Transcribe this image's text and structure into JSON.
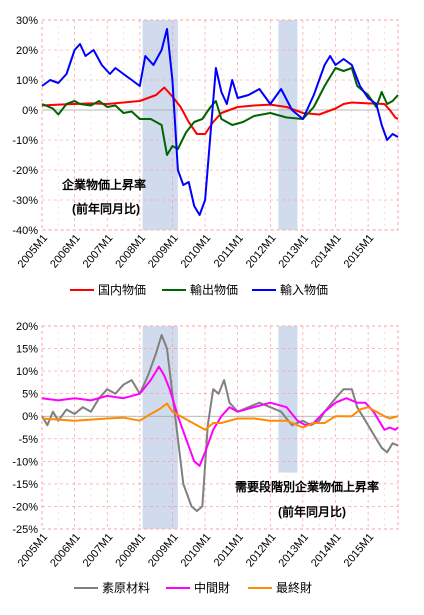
{
  "chart_data": [
    {
      "type": "line",
      "y_unit": "%",
      "ylim": [
        -40,
        30
      ],
      "yticks": [
        "30%",
        "20%",
        "10%",
        "0%",
        "-10%",
        "-20%",
        "-30%",
        "-40%"
      ],
      "x_tick_labels": [
        "2005M1",
        "2006M1",
        "2007M1",
        "2008M1",
        "2009M1",
        "2010M1",
        "2011M1",
        "2012M1",
        "2013M1",
        "2014M1",
        "2015M1"
      ],
      "x_range": [
        "2005M1",
        "2015M12"
      ],
      "grid": true,
      "legend_position": "bottom",
      "shaded_periods": [
        [
          "2008M2",
          "2009M3"
        ],
        [
          "2012M4",
          "2012M11"
        ]
      ],
      "annotation_line1": "企業物価上昇率",
      "annotation_line2": "(前年同月比)",
      "series": [
        {
          "name": "国内物価",
          "color": "#ff0000",
          "points": [
            [
              0,
              1.5
            ],
            [
              6,
              1.8
            ],
            [
              12,
              2.0
            ],
            [
              18,
              2.2
            ],
            [
              24,
              2.0
            ],
            [
              30,
              2.5
            ],
            [
              36,
              3.0
            ],
            [
              42,
              5.0
            ],
            [
              45,
              7.5
            ],
            [
              48,
              4.5
            ],
            [
              51,
              1.0
            ],
            [
              54,
              -4.0
            ],
            [
              57,
              -8.0
            ],
            [
              60,
              -8.0
            ],
            [
              63,
              -4.0
            ],
            [
              66,
              -1.0
            ],
            [
              69,
              0.0
            ],
            [
              72,
              1.0
            ],
            [
              78,
              1.5
            ],
            [
              84,
              1.8
            ],
            [
              90,
              1.0
            ],
            [
              96,
              -1.0
            ],
            [
              102,
              -1.5
            ],
            [
              108,
              0.5
            ],
            [
              111,
              2.0
            ],
            [
              114,
              2.5
            ],
            [
              120,
              2.2
            ],
            [
              126,
              2.0
            ],
            [
              128,
              0.0
            ],
            [
              130,
              -2.5
            ],
            [
              131,
              -3.0
            ]
          ]
        },
        {
          "name": "輸出物価",
          "color": "#006400",
          "points": [
            [
              0,
              2.0
            ],
            [
              4,
              0.5
            ],
            [
              6,
              -1.5
            ],
            [
              9,
              2.0
            ],
            [
              12,
              3.0
            ],
            [
              14,
              2.0
            ],
            [
              18,
              1.5
            ],
            [
              21,
              3.0
            ],
            [
              24,
              1.0
            ],
            [
              27,
              1.5
            ],
            [
              30,
              -1.0
            ],
            [
              33,
              -0.5
            ],
            [
              36,
              -3.0
            ],
            [
              40,
              -3.0
            ],
            [
              44,
              -5.0
            ],
            [
              46,
              -15.0
            ],
            [
              48,
              -12.0
            ],
            [
              50,
              -13.0
            ],
            [
              53,
              -7.5
            ],
            [
              56,
              -4.0
            ],
            [
              59,
              -3.0
            ],
            [
              62,
              1.0
            ],
            [
              64,
              3.0
            ],
            [
              66,
              -3.0
            ],
            [
              70,
              -5.0
            ],
            [
              74,
              -4.0
            ],
            [
              78,
              -2.0
            ],
            [
              84,
              -1.0
            ],
            [
              90,
              -2.5
            ],
            [
              96,
              -3.0
            ],
            [
              100,
              1.0
            ],
            [
              104,
              8.0
            ],
            [
              108,
              14.0
            ],
            [
              111,
              13.0
            ],
            [
              114,
              14.0
            ],
            [
              116,
              8.0
            ],
            [
              120,
              5.0
            ],
            [
              123,
              1.0
            ],
            [
              125,
              6.0
            ],
            [
              127,
              2.0
            ],
            [
              129,
              3.0
            ],
            [
              131,
              5.0
            ]
          ]
        },
        {
          "name": "輸入物価",
          "color": "#0000ff",
          "points": [
            [
              0,
              8.0
            ],
            [
              3,
              10.0
            ],
            [
              6,
              9.0
            ],
            [
              9,
              12.0
            ],
            [
              12,
              20.0
            ],
            [
              14,
              22.0
            ],
            [
              16,
              18.0
            ],
            [
              19,
              20.0
            ],
            [
              22,
              15.0
            ],
            [
              25,
              12.0
            ],
            [
              27,
              14.0
            ],
            [
              30,
              12.0
            ],
            [
              33,
              10.0
            ],
            [
              36,
              8.0
            ],
            [
              38,
              18.0
            ],
            [
              41,
              15.0
            ],
            [
              44,
              20.0
            ],
            [
              46,
              27.0
            ],
            [
              48,
              10.0
            ],
            [
              50,
              -20.0
            ],
            [
              52,
              -25.0
            ],
            [
              54,
              -24.0
            ],
            [
              56,
              -32.0
            ],
            [
              58,
              -35.0
            ],
            [
              60,
              -30.0
            ],
            [
              62,
              -8.0
            ],
            [
              64,
              14.0
            ],
            [
              66,
              6.0
            ],
            [
              68,
              2.0
            ],
            [
              70,
              10.0
            ],
            [
              72,
              4.0
            ],
            [
              76,
              5.0
            ],
            [
              80,
              7.0
            ],
            [
              84,
              2.0
            ],
            [
              88,
              7.0
            ],
            [
              92,
              0.0
            ],
            [
              96,
              -3.0
            ],
            [
              100,
              5.0
            ],
            [
              104,
              15.0
            ],
            [
              106,
              18.0
            ],
            [
              108,
              15.0
            ],
            [
              111,
              17.0
            ],
            [
              114,
              15.0
            ],
            [
              117,
              8.0
            ],
            [
              120,
              4.0
            ],
            [
              123,
              2.0
            ],
            [
              125,
              -5.0
            ],
            [
              127,
              -10.0
            ],
            [
              129,
              -8.0
            ],
            [
              131,
              -9.0
            ]
          ]
        }
      ]
    },
    {
      "type": "line",
      "y_unit": "%",
      "ylim": [
        -25,
        20
      ],
      "yticks": [
        "20%",
        "15%",
        "10%",
        "5%",
        "0%",
        "-5%",
        "-10%",
        "-15%",
        "-20%",
        "-25%"
      ],
      "x_tick_labels": [
        "2005M1",
        "2006M1",
        "2007M1",
        "2008M1",
        "2009M1",
        "2010M1",
        "2011M1",
        "2012M1",
        "2013M1",
        "2014M1",
        "2015M1"
      ],
      "x_range": [
        "2005M1",
        "2015M12"
      ],
      "grid": true,
      "legend_position": "bottom",
      "shaded_periods": [
        [
          "2008M2",
          "2009M3"
        ],
        [
          "2012M4",
          "2012M11"
        ]
      ],
      "annotation_line1": "需要段階別企業物価上昇率",
      "annotation_line2": "(前年同月比)",
      "series": [
        {
          "name": "素原材料",
          "color": "#808080",
          "points": [
            [
              0,
              0.0
            ],
            [
              2,
              -2.0
            ],
            [
              4,
              1.0
            ],
            [
              6,
              -1.0
            ],
            [
              9,
              1.5
            ],
            [
              12,
              0.5
            ],
            [
              15,
              2.0
            ],
            [
              18,
              1.0
            ],
            [
              21,
              4.0
            ],
            [
              24,
              6.0
            ],
            [
              27,
              5.0
            ],
            [
              30,
              7.0
            ],
            [
              33,
              8.0
            ],
            [
              36,
              5.0
            ],
            [
              39,
              9.0
            ],
            [
              42,
              14.0
            ],
            [
              44,
              18.0
            ],
            [
              46,
              15.0
            ],
            [
              48,
              5.0
            ],
            [
              50,
              -5.0
            ],
            [
              52,
              -15.0
            ],
            [
              55,
              -20.0
            ],
            [
              57,
              -21.0
            ],
            [
              59,
              -20.0
            ],
            [
              61,
              -2.0
            ],
            [
              63,
              6.0
            ],
            [
              65,
              5.0
            ],
            [
              67,
              8.0
            ],
            [
              69,
              3.0
            ],
            [
              72,
              1.0
            ],
            [
              76,
              2.0
            ],
            [
              80,
              3.0
            ],
            [
              84,
              2.0
            ],
            [
              88,
              1.0
            ],
            [
              92,
              -2.0
            ],
            [
              96,
              -1.0
            ],
            [
              99,
              -2.0
            ],
            [
              102,
              -1.0
            ],
            [
              104,
              1.0
            ],
            [
              108,
              4.0
            ],
            [
              111,
              6.0
            ],
            [
              114,
              6.0
            ],
            [
              116,
              2.0
            ],
            [
              119,
              -1.0
            ],
            [
              122,
              -4.0
            ],
            [
              125,
              -7.0
            ],
            [
              127,
              -8.0
            ],
            [
              129,
              -6.0
            ],
            [
              131,
              -6.5
            ]
          ]
        },
        {
          "name": "中間財",
          "color": "#ff00ff",
          "points": [
            [
              0,
              4.0
            ],
            [
              6,
              3.5
            ],
            [
              12,
              4.0
            ],
            [
              18,
              3.5
            ],
            [
              24,
              4.5
            ],
            [
              30,
              4.0
            ],
            [
              36,
              5.0
            ],
            [
              40,
              8.0
            ],
            [
              43,
              11.0
            ],
            [
              45,
              9.0
            ],
            [
              47,
              6.0
            ],
            [
              50,
              0.0
            ],
            [
              53,
              -5.0
            ],
            [
              56,
              -10.0
            ],
            [
              58,
              -11.0
            ],
            [
              60,
              -8.0
            ],
            [
              63,
              -3.0
            ],
            [
              66,
              0.0
            ],
            [
              69,
              2.0
            ],
            [
              72,
              1.0
            ],
            [
              78,
              2.0
            ],
            [
              84,
              3.0
            ],
            [
              90,
              2.0
            ],
            [
              94,
              -1.0
            ],
            [
              97,
              -2.0
            ],
            [
              100,
              -1.5
            ],
            [
              104,
              1.0
            ],
            [
              108,
              3.0
            ],
            [
              112,
              4.0
            ],
            [
              116,
              3.0
            ],
            [
              119,
              3.0
            ],
            [
              122,
              1.0
            ],
            [
              124,
              -1.0
            ],
            [
              126,
              -3.0
            ],
            [
              128,
              -2.5
            ],
            [
              130,
              -3.0
            ],
            [
              131,
              -2.5
            ]
          ]
        },
        {
          "name": "最終財",
          "color": "#ff8c00",
          "points": [
            [
              0,
              -0.5
            ],
            [
              12,
              -1.0
            ],
            [
              24,
              -0.5
            ],
            [
              30,
              -0.3
            ],
            [
              36,
              -1.0
            ],
            [
              40,
              0.5
            ],
            [
              43,
              1.5
            ],
            [
              46,
              2.8
            ],
            [
              48,
              1.0
            ],
            [
              51,
              0.0
            ],
            [
              54,
              -1.0
            ],
            [
              57,
              -2.0
            ],
            [
              60,
              -3.0
            ],
            [
              63,
              -1.5
            ],
            [
              66,
              -1.5
            ],
            [
              69,
              -1.0
            ],
            [
              72,
              -0.5
            ],
            [
              78,
              -0.5
            ],
            [
              84,
              -1.0
            ],
            [
              90,
              -1.0
            ],
            [
              96,
              -2.5
            ],
            [
              100,
              -1.5
            ],
            [
              104,
              -1.5
            ],
            [
              108,
              0.0
            ],
            [
              114,
              0.0
            ],
            [
              117,
              1.5
            ],
            [
              120,
              2.0
            ],
            [
              123,
              1.0
            ],
            [
              126,
              0.0
            ],
            [
              128,
              -0.5
            ],
            [
              131,
              0.0
            ]
          ]
        }
      ]
    }
  ]
}
